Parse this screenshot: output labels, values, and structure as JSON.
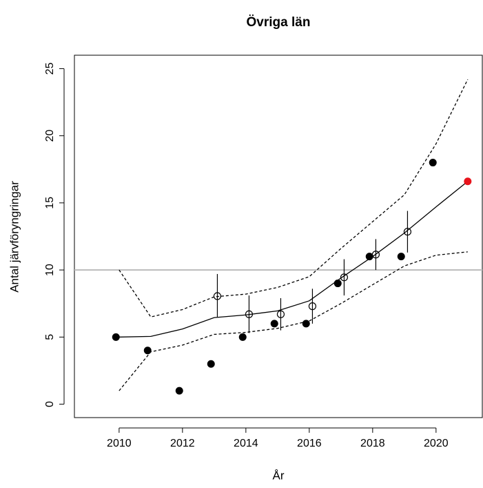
{
  "chart_data": {
    "type": "line",
    "title": "Övriga län",
    "x_label": "År",
    "y_label": "Antal järvföryngringar",
    "xlim": [
      2008.59,
      2021.46
    ],
    "ylim": [
      -1,
      26
    ],
    "xticks": [
      2010,
      2012,
      2014,
      2016,
      2018,
      2020
    ],
    "yticks": [
      0,
      5,
      10,
      15,
      20,
      25
    ],
    "hline": {
      "value": 10,
      "color": "#bbbbbb"
    },
    "series": [
      {
        "kind": "line",
        "dash": false,
        "color": "#000000",
        "x": [
          2010,
          2011,
          2012,
          2013,
          2014,
          2015,
          2016,
          2017,
          2018,
          2019,
          2020,
          2021
        ],
        "values": [
          5.0,
          5.05,
          5.6,
          6.45,
          6.65,
          6.95,
          7.7,
          9.4,
          11.0,
          12.75,
          14.7,
          16.6
        ]
      },
      {
        "kind": "line",
        "dash": true,
        "color": "#000000",
        "x": [
          2010,
          2011,
          2012,
          2013,
          2014,
          2015,
          2016,
          2017,
          2018,
          2019,
          2020,
          2021
        ],
        "values": [
          10.0,
          6.5,
          7.05,
          8.0,
          8.2,
          8.7,
          9.5,
          11.6,
          13.6,
          15.6,
          19.4,
          24.2
        ]
      },
      {
        "kind": "line",
        "dash": true,
        "color": "#000000",
        "x": [
          2010,
          2011,
          2012,
          2013,
          2014,
          2015,
          2016,
          2017,
          2018,
          2019,
          2020,
          2021
        ],
        "values": [
          1.0,
          3.9,
          4.4,
          5.2,
          5.35,
          5.65,
          6.2,
          7.5,
          8.9,
          10.3,
          11.1,
          11.35
        ]
      },
      {
        "kind": "points",
        "filled": true,
        "color": "#000000",
        "x": [
          2009.9,
          2010.9,
          2011.9,
          2012.9,
          2013.9,
          2014.9,
          2015.9,
          2016.9,
          2017.9,
          2018.9,
          2019.9
        ],
        "values": [
          5,
          4,
          1,
          3,
          5,
          6,
          6,
          9,
          11,
          11,
          18
        ]
      },
      {
        "kind": "errorbar",
        "filled": false,
        "color": "#000000",
        "x": [
          2013.1,
          2014.1,
          2015.1,
          2016.1,
          2017.1,
          2018.1,
          2019.1
        ],
        "values": [
          8.05,
          6.7,
          6.7,
          7.3,
          9.45,
          11.15,
          12.85
        ],
        "lower": [
          6.5,
          5.3,
          5.5,
          6.0,
          8.1,
          10.0,
          11.3
        ],
        "upper": [
          9.7,
          8.1,
          7.9,
          8.6,
          10.8,
          12.3,
          14.4
        ]
      },
      {
        "kind": "points",
        "filled": true,
        "color": "#e8141c",
        "x": [
          2021
        ],
        "values": [
          16.6
        ]
      }
    ]
  }
}
